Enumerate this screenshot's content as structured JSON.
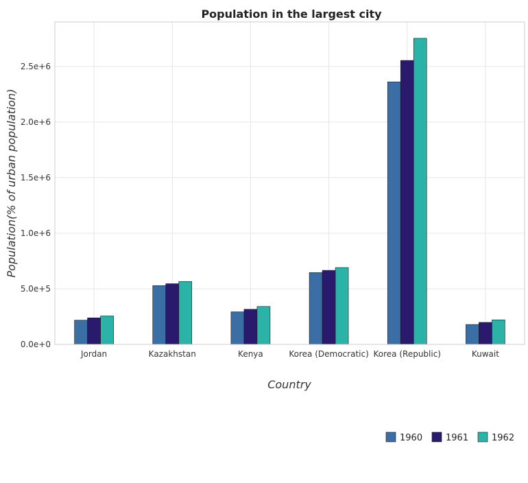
{
  "chart_data": {
    "type": "bar",
    "title": "Population in the largest city",
    "xlabel": "Country",
    "ylabel": "Population(% of urban population)",
    "categories": [
      "Jordan",
      "Kazakhstan",
      "Kenya",
      "Korea (Democratic)",
      "Korea (Republic)",
      "Kuwait"
    ],
    "series": [
      {
        "name": "1960",
        "color": "#3a6ea5",
        "values": [
          218000,
          529000,
          293000,
          646000,
          2361000,
          179000
        ]
      },
      {
        "name": "1961",
        "color": "#2a1a6e",
        "values": [
          239000,
          546000,
          316000,
          666000,
          2554000,
          198000
        ]
      },
      {
        "name": "1962",
        "color": "#2ab3a6",
        "values": [
          256000,
          566000,
          341000,
          691000,
          2753000,
          221000
        ]
      }
    ],
    "ylim": [
      0,
      2900000
    ],
    "yticks": [
      0,
      500000,
      1000000,
      1500000,
      2000000,
      2500000
    ],
    "ytick_labels": [
      "0.0e+0",
      "5.0e+5",
      "1.0e+6",
      "1.5e+6",
      "2.0e+6",
      "2.5e+6"
    ],
    "grid": true,
    "legend_position": "bottom-right"
  }
}
